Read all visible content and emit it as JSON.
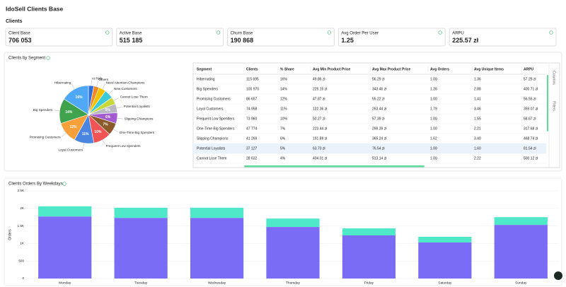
{
  "header": {
    "title": "IdoSell Clients Base",
    "section": "Clients"
  },
  "kpis": [
    {
      "label": "Client Base",
      "value": "706 053"
    },
    {
      "label": "Active Base",
      "value": "515 185"
    },
    {
      "label": "Churn Base",
      "value": "190 868"
    },
    {
      "label": "Avg Order Per User",
      "value": "1.25"
    },
    {
      "label": "ARPU",
      "value": "225.57 zł"
    }
  ],
  "table": {
    "columns": [
      "Segment",
      "Clients",
      "% Share",
      "Avg Min Product Price",
      "Avg Max Product Price",
      "Avg Orders",
      "Avg Unique Items",
      "ARPU"
    ],
    "rows": [
      [
        "Hibernating",
        "115 695",
        "16%",
        "49.86 zł",
        "56.29 zł",
        "1.00",
        "1.36",
        "57.25 zł"
      ],
      [
        "Big Spenders",
        "100 970",
        "14%",
        "225.15 zł",
        "343.46 zł",
        "1.26",
        "2.88",
        "400.71 zł"
      ],
      [
        "Promising Customers",
        "86 657",
        "12%",
        "47.87 zł",
        "55.22 zł",
        "1.00",
        "1.41",
        "56.55 zł"
      ],
      [
        "Loyal Customers",
        "74 958",
        "11%",
        "122.36 zł",
        "263.44 zł",
        "1.79",
        "3.46",
        "355.07 zł"
      ],
      [
        "Frequent Low Spenders",
        "73 960",
        "10%",
        "50.27 zł",
        "57.39 zł",
        "1.00",
        "1.55",
        "58.67 zł"
      ],
      [
        "One-Time Big Spenders",
        "47 774",
        "7%",
        "223.44 zł",
        "299.39 zł",
        "1.00",
        "2.21",
        "317.68 zł"
      ],
      [
        "Slipping Champions",
        "41 269",
        "6%",
        "191.89 zł",
        "365.24 zł",
        "1.62",
        "3.40",
        "468.74 zł"
      ],
      [
        "Potential Loyalists",
        "37 127",
        "5%",
        "63.70 zł",
        "76.54 zł",
        "1.00",
        "1.60",
        "81.54 zł"
      ],
      [
        "Cannot Lose Them",
        "28 632",
        "4%",
        "404.01 zł",
        "513.14 zł",
        "1.00",
        "2.22",
        "500.12 zł"
      ]
    ],
    "side_tabs": [
      "Columns",
      "Filters"
    ]
  },
  "chart_data": [
    {
      "type": "pie",
      "title": "Clients by Segment",
      "categories": [
        "At Risk",
        "Others",
        "Need Attention-Champions",
        "New Customers",
        "Cannot Lose Them",
        "Potential Loyalists",
        "Slipping Champions",
        "One-Time Big Spenders",
        "Frequent Low Spenders",
        "Loyal Customers",
        "Promising Customers",
        "Big Spenders",
        "Hibernating"
      ],
      "values": [
        3,
        3,
        4,
        5,
        4,
        5,
        6,
        7,
        10,
        11,
        12,
        14,
        16
      ],
      "value_labels": [
        null,
        null,
        null,
        null,
        null,
        "5%",
        "6%",
        "7%",
        "10%",
        "11%",
        "12%",
        "14%",
        "16%"
      ],
      "colors": [
        "#2f6fd6",
        "#f08a24",
        "#f2c200",
        "#3cc9d8",
        "#c8d93c",
        "#b9b9c4",
        "#a45ad0",
        "#8b5a2b",
        "#f05454",
        "#4a86e0",
        "#f7a03b",
        "#3fa34d",
        "#4fa8f5"
      ]
    },
    {
      "type": "bar",
      "title": "Clients Orders By Weekdays",
      "y_label": "Orders",
      "categories": [
        "Monday",
        "Tuesday",
        "Wednesday",
        "Thursday",
        "Friday",
        "Saturday",
        "Sunday"
      ],
      "series": [
        {
          "color": "#7b6cf6",
          "values": [
            1770,
            1730,
            1730,
            1470,
            1230,
            1030,
            1530
          ]
        },
        {
          "color": "#4fe8c8",
          "values": [
            290,
            290,
            290,
            240,
            200,
            160,
            220
          ]
        }
      ],
      "ylim": [
        0,
        2500
      ],
      "yticks": [
        0,
        500,
        {
          "value": 1000,
          "label": "1K"
        },
        {
          "value": 1500,
          "label": "1.5K"
        },
        {
          "value": 2000,
          "label": "2K"
        },
        {
          "value": 2500,
          "label": "2.5K"
        }
      ],
      "grid": true,
      "stacked": true
    }
  ]
}
